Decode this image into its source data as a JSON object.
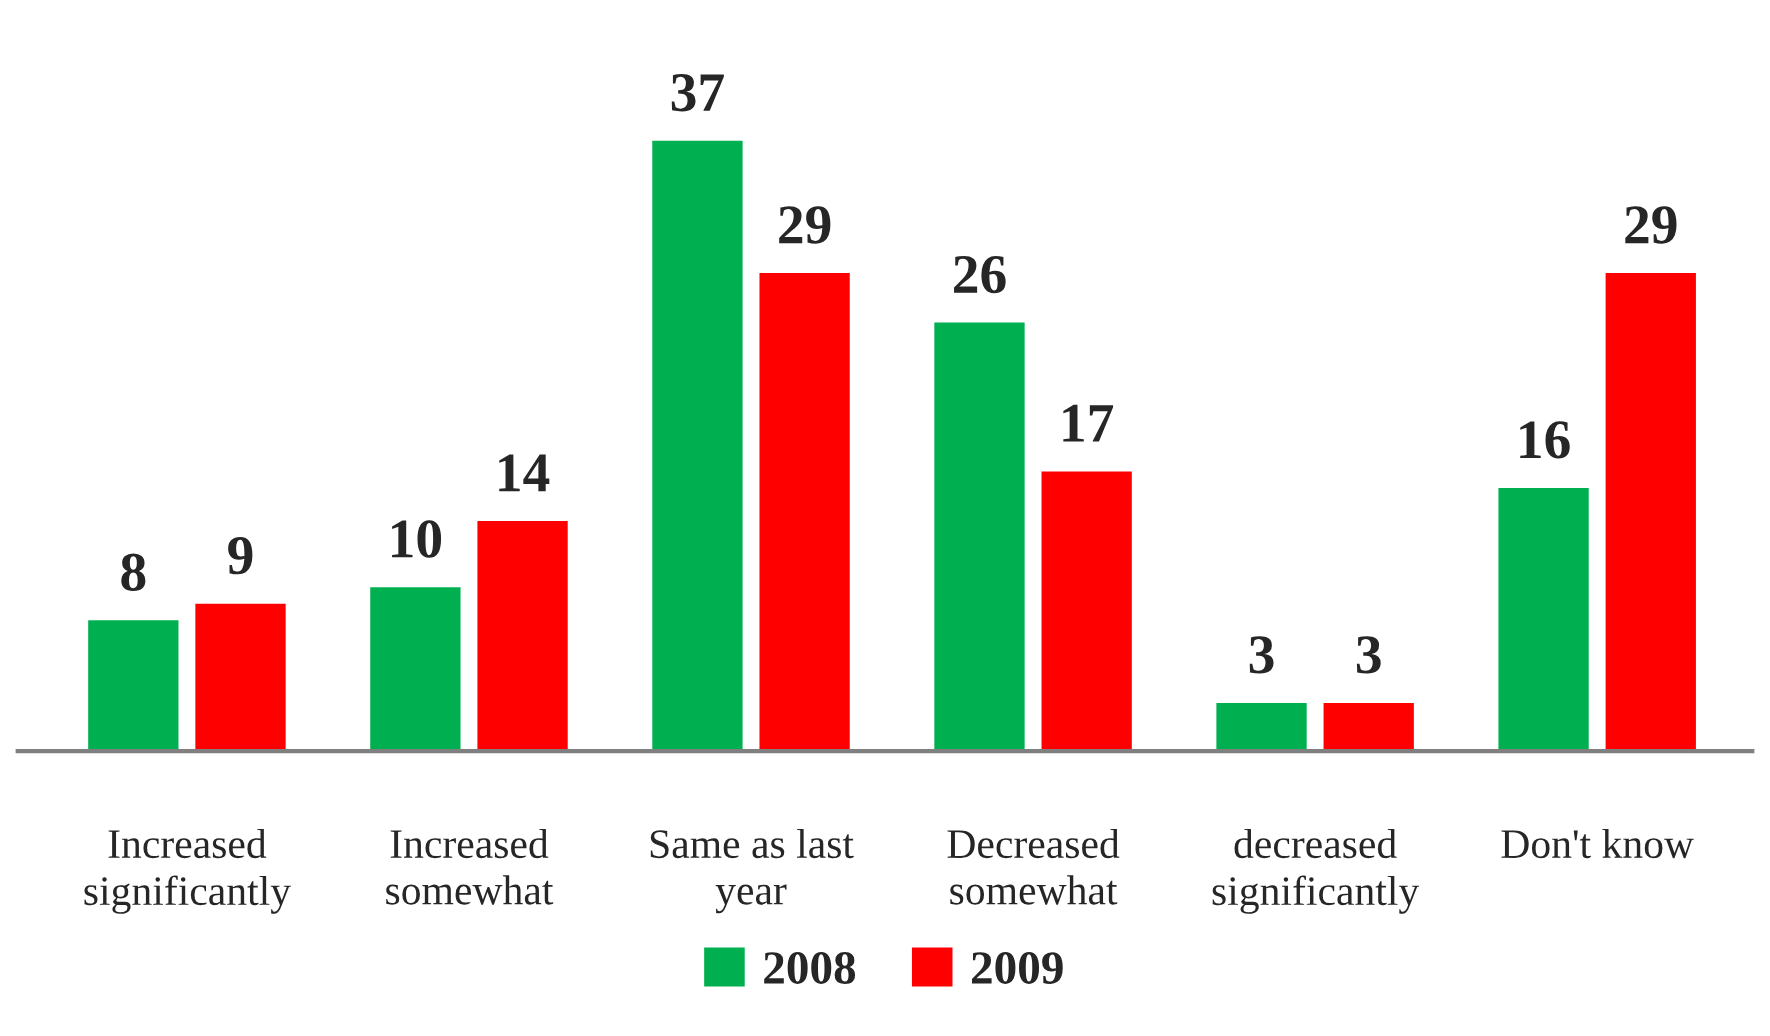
{
  "chart_data": {
    "type": "bar",
    "categories": [
      "Increased significantly",
      "Increased somewhat",
      "Same as last year",
      "Decreased somewhat",
      "decreased significantly",
      "Don't know"
    ],
    "series": [
      {
        "name": "2008",
        "color": "#00b050",
        "values": [
          8,
          10,
          37,
          26,
          3,
          16
        ]
      },
      {
        "name": "2009",
        "color": "#ff0000",
        "values": [
          9,
          14,
          29,
          17,
          3,
          29
        ]
      }
    ],
    "data_labels": true,
    "grid": false,
    "legend": "bottom"
  }
}
